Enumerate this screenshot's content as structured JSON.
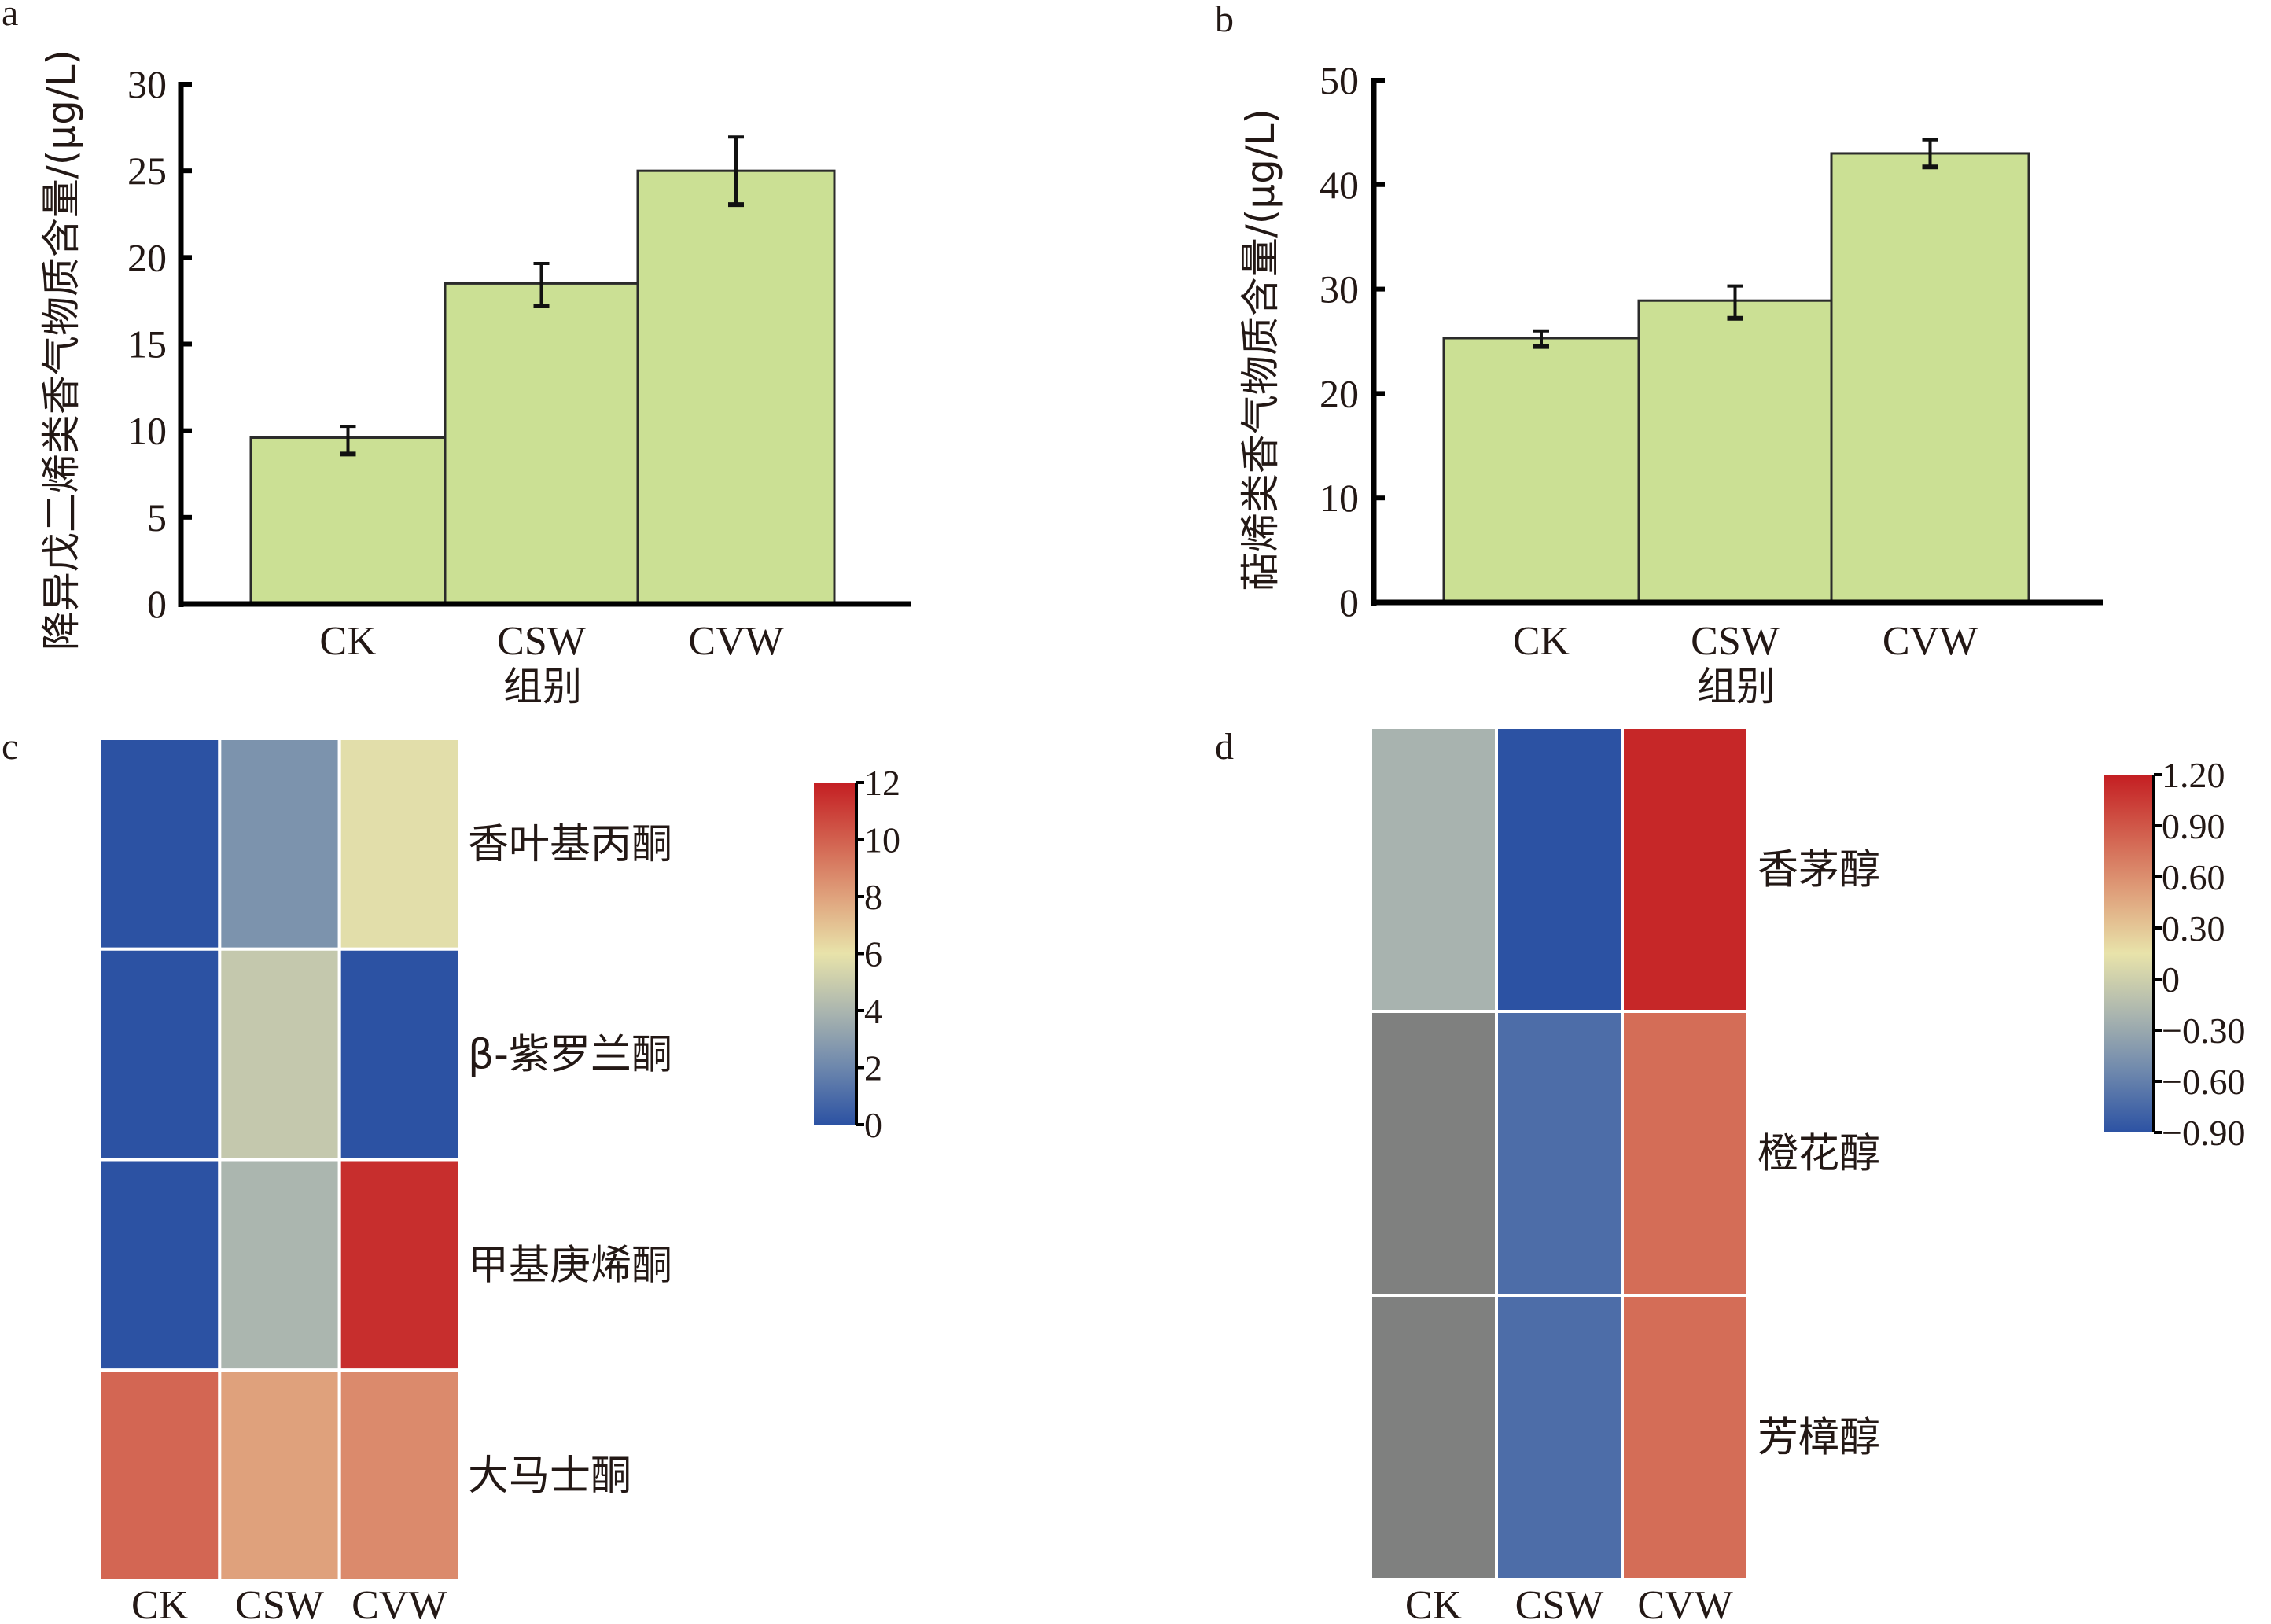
{
  "figure": {
    "panels": [
      "a",
      "b",
      "c",
      "d"
    ]
  },
  "chart_data": [
    {
      "panel": "a",
      "type": "bar",
      "categories": [
        "CK",
        "CSW",
        "CVW"
      ],
      "values": [
        9.6,
        18.5,
        25.0
      ],
      "error_upper": [
        0.65,
        1.15,
        1.95
      ],
      "error_lower": [
        0.95,
        1.3,
        1.95
      ],
      "xlabel": "组别",
      "ylabel": "降异戊二烯类香气物质含量/(μg/L)",
      "ylim": [
        0,
        30
      ],
      "yticks": [
        0,
        5,
        10,
        15,
        20,
        25,
        30
      ],
      "bar_color": "#cbe094",
      "grid": false
    },
    {
      "panel": "b",
      "type": "bar",
      "categories": [
        "CK",
        "CSW",
        "CVW"
      ],
      "values": [
        25.3,
        28.9,
        43.0
      ],
      "error_upper": [
        0.7,
        1.4,
        1.3
      ],
      "error_lower": [
        0.8,
        1.7,
        1.3
      ],
      "xlabel": "组别",
      "ylabel": "萜烯类香气物质含量/(μg/L)",
      "ylim": [
        0,
        50
      ],
      "yticks": [
        0,
        10,
        20,
        30,
        40,
        50
      ],
      "bar_color": "#cbe094",
      "grid": false
    },
    {
      "panel": "c",
      "type": "heatmap",
      "columns": [
        "CK",
        "CSW",
        "CVW"
      ],
      "rows": [
        "香叶基丙酮",
        "β-紫罗兰酮",
        "甲基庚烯酮",
        "大马士酮"
      ],
      "values": [
        [
          0.0,
          2.5,
          5.8
        ],
        [
          0.0,
          4.8,
          0.0
        ],
        [
          0.0,
          4.0,
          11.5
        ],
        [
          9.8,
          8.0,
          8.7
        ]
      ],
      "colorbar": {
        "range": [
          0,
          12
        ],
        "ticks": [
          "0",
          "2",
          "4",
          "6",
          "8",
          "10",
          "12"
        ],
        "tick_values": [
          0,
          2,
          4,
          6,
          8,
          10,
          12
        ],
        "stops": [
          {
            "pos": 0.0,
            "color": "#2c52a3"
          },
          {
            "pos": 0.17,
            "color": "#6e88ad"
          },
          {
            "pos": 0.33,
            "color": "#aab5af"
          },
          {
            "pos": 0.5,
            "color": "#e8e3aa"
          },
          {
            "pos": 0.67,
            "color": "#dfa07b"
          },
          {
            "pos": 0.83,
            "color": "#d2614f"
          },
          {
            "pos": 1.0,
            "color": "#c41e22"
          }
        ]
      }
    },
    {
      "panel": "d",
      "type": "heatmap",
      "columns": [
        "CK",
        "CSW",
        "CVW"
      ],
      "rows": [
        "香茅醇",
        "橙花醇",
        "芳樟醇"
      ],
      "values": [
        [
          -0.22,
          -0.9,
          1.15
        ],
        [
          null,
          -0.72,
          0.78
        ],
        [
          null,
          -0.72,
          0.78
        ]
      ],
      "na_color": "#7f807f",
      "colorbar": {
        "range": [
          -0.9,
          1.2
        ],
        "ticks": [
          "−0.90",
          "−0.60",
          "−0.30",
          "0",
          "0.30",
          "0.60",
          "0.90",
          "1.20"
        ],
        "tick_values": [
          -0.9,
          -0.6,
          -0.3,
          0,
          0.3,
          0.6,
          0.9,
          1.2
        ],
        "stops": [
          {
            "pos": 0.0,
            "color": "#2c52a3"
          },
          {
            "pos": 0.17,
            "color": "#6e88ad"
          },
          {
            "pos": 0.33,
            "color": "#aab5af"
          },
          {
            "pos": 0.5,
            "color": "#e8e3aa"
          },
          {
            "pos": 0.67,
            "color": "#dfa07b"
          },
          {
            "pos": 0.83,
            "color": "#d2614f"
          },
          {
            "pos": 1.0,
            "color": "#c41e22"
          }
        ]
      }
    }
  ]
}
